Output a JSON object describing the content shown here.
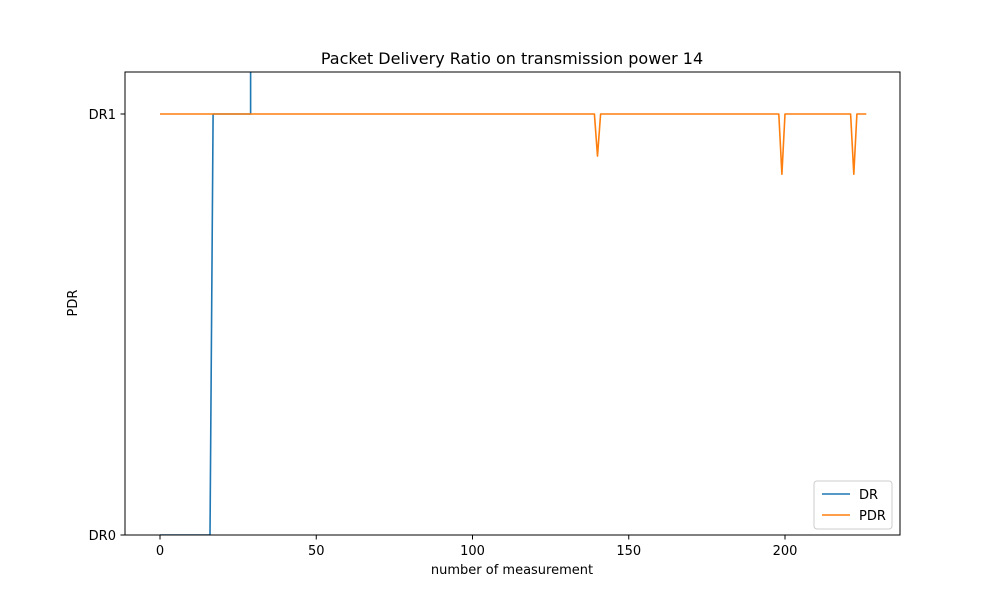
{
  "chart_data": {
    "type": "line",
    "title": "Packet Delivery Ratio on transmission power 14",
    "xlabel": "number of measurement",
    "ylabel": "PDR",
    "xlim": [
      -10,
      237
    ],
    "ylim": [
      -0.0,
      1.1
    ],
    "x_ticks": [
      0,
      50,
      100,
      150,
      200
    ],
    "y_ticks": [
      {
        "value": 0,
        "label": "DR0"
      },
      {
        "value": 1,
        "label": "DR1"
      }
    ],
    "grid": false,
    "legend_position": "lower right",
    "series": [
      {
        "name": "DR",
        "color": "#1f77b4",
        "points": [
          [
            0,
            0
          ],
          [
            16,
            0
          ],
          [
            17,
            1
          ],
          [
            29,
            1
          ],
          [
            29,
            1.1
          ]
        ]
      },
      {
        "name": "PDR",
        "color": "#ff7f0e",
        "points": [
          [
            0,
            1
          ],
          [
            139,
            1
          ],
          [
            140,
            0.9
          ],
          [
            141,
            1
          ],
          [
            198,
            1
          ],
          [
            199,
            0.857
          ],
          [
            200,
            1
          ],
          [
            221,
            1
          ],
          [
            222,
            0.857
          ],
          [
            223,
            1
          ],
          [
            226,
            1
          ]
        ]
      }
    ]
  }
}
